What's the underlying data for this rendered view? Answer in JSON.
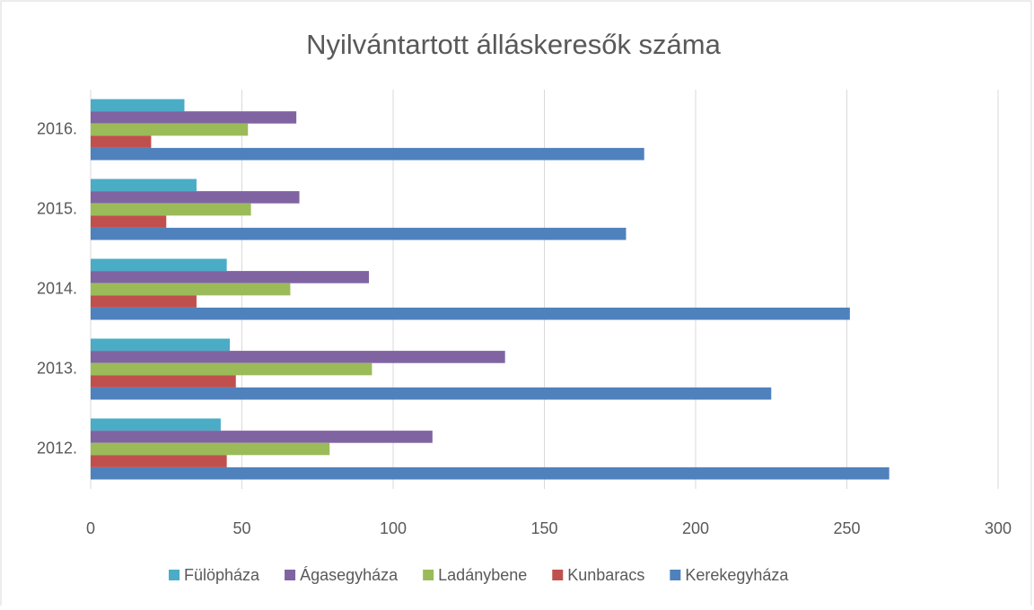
{
  "chart_data": {
    "type": "bar",
    "orientation": "horizontal",
    "title": "Nyilvántartott álláskeresők száma",
    "categories": [
      "2012.",
      "2013.",
      "2014.",
      "2015.",
      "2016."
    ],
    "series": [
      {
        "name": "Fülöpháza",
        "color": "#4bacc6",
        "values": [
          43,
          46,
          45,
          35,
          31
        ]
      },
      {
        "name": "Ágasegyháza",
        "color": "#8064a2",
        "values": [
          113,
          137,
          92,
          69,
          68
        ]
      },
      {
        "name": "Ladánybene",
        "color": "#9bbb59",
        "values": [
          79,
          93,
          66,
          53,
          52
        ]
      },
      {
        "name": "Kunbaracs",
        "color": "#c0504d",
        "values": [
          45,
          48,
          35,
          25,
          20
        ]
      },
      {
        "name": "Kerekegyháza",
        "color": "#4f81bd",
        "values": [
          264,
          225,
          251,
          177,
          183
        ]
      }
    ],
    "xlim": [
      0,
      300
    ],
    "xticks": [
      0,
      50,
      100,
      150,
      200,
      250,
      300
    ],
    "grid": true,
    "legend": "bottom"
  }
}
